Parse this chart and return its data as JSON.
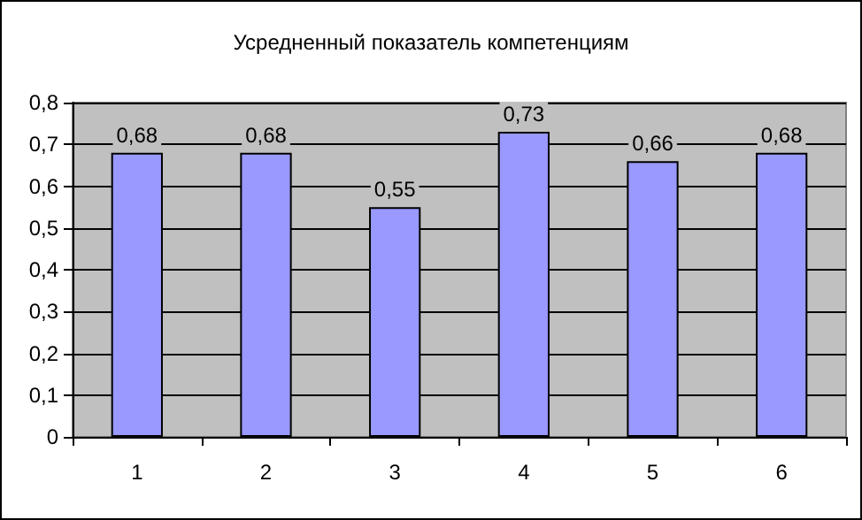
{
  "chart_data": {
    "type": "bar",
    "title": "Усредненный показатель компетенциям",
    "categories": [
      "1",
      "2",
      "3",
      "4",
      "5",
      "6"
    ],
    "values": [
      0.68,
      0.68,
      0.55,
      0.73,
      0.66,
      0.68
    ],
    "value_labels": [
      "0,68",
      "0,68",
      "0,55",
      "0,73",
      "0,66",
      "0,68"
    ],
    "color": "#9999ff",
    "ylim": [
      0,
      0.8
    ],
    "yticks": [
      0,
      {
        "value": 0.1,
        "label": "0,1"
      },
      {
        "value": 0.2,
        "label": "0,2"
      },
      {
        "value": 0.3,
        "label": "0,3"
      },
      {
        "value": 0.4,
        "label": "0,4"
      },
      {
        "value": 0.5,
        "label": "0,5"
      },
      {
        "value": 0.6,
        "label": "0,6"
      },
      {
        "value": 0.7,
        "label": "0,7"
      },
      {
        "value": 0.8,
        "label": "0,8"
      }
    ],
    "grid": "y"
  }
}
